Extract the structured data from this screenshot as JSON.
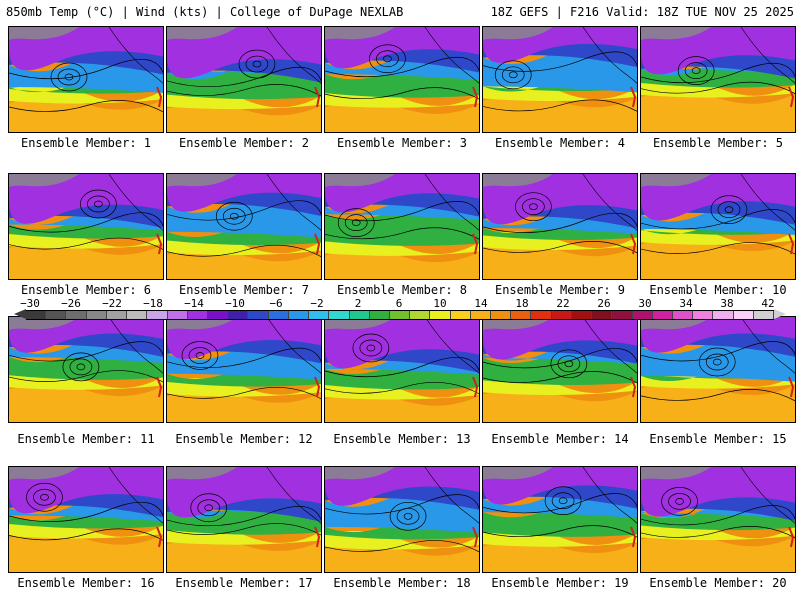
{
  "header": {
    "title_left": "850mb Temp (°C) | Wind (kts) | College of DuPage NEXLAB",
    "title_right": "18Z GEFS | F216 Valid: 18Z TUE NOV 25 2025"
  },
  "panels": [
    {
      "label": "Ensemble Member: 1"
    },
    {
      "label": "Ensemble Member: 2"
    },
    {
      "label": "Ensemble Member: 3"
    },
    {
      "label": "Ensemble Member: 4"
    },
    {
      "label": "Ensemble Member: 5"
    },
    {
      "label": "Ensemble Member: 6"
    },
    {
      "label": "Ensemble Member: 7"
    },
    {
      "label": "Ensemble Member: 8"
    },
    {
      "label": "Ensemble Member: 9"
    },
    {
      "label": "Ensemble Member: 10"
    },
    {
      "label": "Ensemble Member: 11"
    },
    {
      "label": "Ensemble Member: 12"
    },
    {
      "label": "Ensemble Member: 13"
    },
    {
      "label": "Ensemble Member: 14"
    },
    {
      "label": "Ensemble Member: 15"
    },
    {
      "label": "Ensemble Member: 16"
    },
    {
      "label": "Ensemble Member: 17"
    },
    {
      "label": "Ensemble Member: 18"
    },
    {
      "label": "Ensemble Member: 19"
    },
    {
      "label": "Ensemble Member: 20"
    }
  ],
  "colorbar": {
    "ticks": [
      "−30",
      "−26",
      "−22",
      "−18",
      "−14",
      "−10",
      "−6",
      "−2",
      "2",
      "6",
      "10",
      "14",
      "18",
      "22",
      "26",
      "30",
      "34",
      "38",
      "42"
    ],
    "colors": [
      "#3a3a3a",
      "#555555",
      "#6e6e6e",
      "#888888",
      "#a2a2a2",
      "#bcbcbc",
      "#c9a6e6",
      "#c070e8",
      "#a030e0",
      "#7a10c8",
      "#4020a8",
      "#2f47c9",
      "#2a6ee0",
      "#2a98e8",
      "#30c0f0",
      "#30d8d0",
      "#20c890",
      "#30b040",
      "#70c030",
      "#b0d830",
      "#e8f020",
      "#f8d020",
      "#f8b018",
      "#f09010",
      "#e86010",
      "#e03010",
      "#c81818",
      "#a01010",
      "#801020",
      "#901040",
      "#b01070",
      "#d020a0",
      "#e050c8",
      "#f080e0",
      "#f0b0f0",
      "#f8d0f8",
      "#d0d0d0"
    ]
  },
  "map": {
    "colors": {
      "cold": "#888888",
      "veryCold": "#a030e0",
      "cool": "#2f47c9",
      "mild": "#2a98e8",
      "green": "#30b040",
      "yellow": "#e8f020",
      "warm": "#f8b018",
      "hot": "#f09010"
    }
  }
}
